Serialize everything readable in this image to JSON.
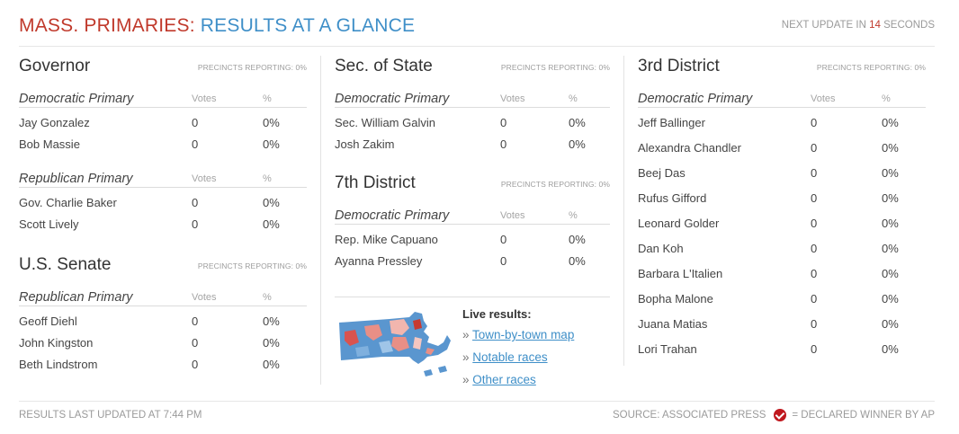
{
  "header": {
    "title_part1": "MASS. PRIMARIES:",
    "title_part2": "RESULTS AT A GLANCE",
    "next_update_prefix": "NEXT UPDATE IN",
    "next_update_seconds": "14",
    "next_update_suffix": "SECONDS"
  },
  "labels": {
    "votes": "Votes",
    "pct": "%"
  },
  "governor": {
    "name": "Governor",
    "precincts": "PRECINCTS REPORTING: 0%",
    "dem": {
      "name": "Democratic Primary",
      "candidates": [
        {
          "name": "Jay Gonzalez",
          "votes": "0",
          "pct": "0%"
        },
        {
          "name": "Bob Massie",
          "votes": "0",
          "pct": "0%"
        }
      ]
    },
    "rep": {
      "name": "Republican Primary",
      "candidates": [
        {
          "name": "Gov. Charlie Baker",
          "votes": "0",
          "pct": "0%"
        },
        {
          "name": "Scott Lively",
          "votes": "0",
          "pct": "0%"
        }
      ]
    }
  },
  "senate": {
    "name": "U.S. Senate",
    "precincts": "PRECINCTS REPORTING: 0%",
    "rep": {
      "name": "Republican Primary",
      "candidates": [
        {
          "name": "Geoff Diehl",
          "votes": "0",
          "pct": "0%"
        },
        {
          "name": "John Kingston",
          "votes": "0",
          "pct": "0%"
        },
        {
          "name": "Beth Lindstrom",
          "votes": "0",
          "pct": "0%"
        }
      ]
    }
  },
  "secstate": {
    "name": "Sec. of State",
    "precincts": "PRECINCTS REPORTING: 0%",
    "dem": {
      "name": "Democratic Primary",
      "candidates": [
        {
          "name": "Sec. William Galvin",
          "votes": "0",
          "pct": "0%"
        },
        {
          "name": "Josh Zakim",
          "votes": "0",
          "pct": "0%"
        }
      ]
    }
  },
  "district7": {
    "name": "7th District",
    "precincts": "PRECINCTS REPORTING: 0%",
    "dem": {
      "name": "Democratic Primary",
      "candidates": [
        {
          "name": "Rep. Mike Capuano",
          "votes": "0",
          "pct": "0%"
        },
        {
          "name": "Ayanna Pressley",
          "votes": "0",
          "pct": "0%"
        }
      ]
    }
  },
  "district3": {
    "name": "3rd District",
    "precincts": "PRECINCTS REPORTING: 0%",
    "dem": {
      "name": "Democratic Primary",
      "candidates": [
        {
          "name": "Jeff Ballinger",
          "votes": "0",
          "pct": "0%"
        },
        {
          "name": "Alexandra Chandler",
          "votes": "0",
          "pct": "0%"
        },
        {
          "name": "Beej Das",
          "votes": "0",
          "pct": "0%"
        },
        {
          "name": "Rufus Gifford",
          "votes": "0",
          "pct": "0%"
        },
        {
          "name": "Leonard Golder",
          "votes": "0",
          "pct": "0%"
        },
        {
          "name": "Dan Koh",
          "votes": "0",
          "pct": "0%"
        },
        {
          "name": "Barbara L'Italien",
          "votes": "0",
          "pct": "0%"
        },
        {
          "name": "Bopha Malone",
          "votes": "0",
          "pct": "0%"
        },
        {
          "name": "Juana Matias",
          "votes": "0",
          "pct": "0%"
        },
        {
          "name": "Lori Trahan",
          "votes": "0",
          "pct": "0%"
        }
      ]
    }
  },
  "live": {
    "title": "Live results:",
    "bullet": "»",
    "links": [
      "Town-by-town map",
      "Notable races",
      "Other races"
    ]
  },
  "footer": {
    "updated": "RESULTS LAST UPDATED AT 7:44 PM",
    "source": "SOURCE: ASSOCIATED PRESS",
    "key": "= DECLARED WINNER BY AP"
  },
  "colors": {
    "red": "#c0392b",
    "blue": "#3f8fc8",
    "winner_check": "#c0181e"
  },
  "icons": {
    "map": "massachusetts-results-map-icon",
    "winner": "check-circle-icon"
  }
}
